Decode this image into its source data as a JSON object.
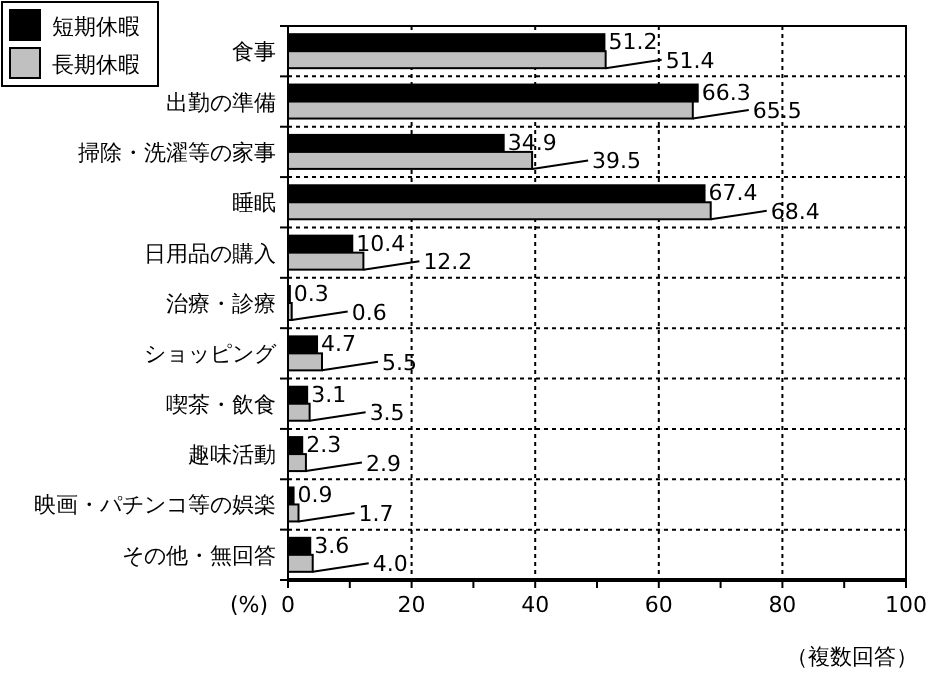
{
  "chart_data": {
    "type": "bar",
    "orientation": "horizontal",
    "categories": [
      "食事",
      "出勤の準備",
      "掃除・洗濯等の家事",
      "睡眠",
      "日用品の購入",
      "治療・診療",
      "ショッピング",
      "喫茶・飲食",
      "趣味活動",
      "映画・パチンコ等の娯楽",
      "その他・無回答"
    ],
    "series": [
      {
        "name": "短期休暇",
        "color": "#000000",
        "values": [
          51.2,
          66.3,
          34.9,
          67.4,
          10.4,
          0.3,
          4.7,
          3.1,
          2.3,
          0.9,
          3.6
        ],
        "value_labels": [
          "51.2",
          "66.3",
          "34.9",
          "67.4",
          "10.4",
          "0.3",
          "4.7",
          "3.1",
          "2.3",
          "0.9",
          "3.6"
        ]
      },
      {
        "name": "長期休暇",
        "color": "#c0c0c0",
        "values": [
          51.4,
          65.5,
          39.5,
          68.4,
          12.2,
          0.6,
          5.5,
          3.5,
          2.9,
          1.7,
          4.0
        ],
        "value_labels": [
          "51.4",
          "65.5",
          "39.5",
          "68.4",
          "12.2",
          "0.6",
          "5.5",
          "3.5",
          "2.9",
          "1.7",
          "4.0"
        ]
      }
    ],
    "xlim": [
      0,
      100
    ],
    "xticks": [
      0,
      {
        "value": 10,
        "label": null
      },
      20,
      {
        "value": 30,
        "label": null
      },
      40,
      {
        "value": 50,
        "label": null
      },
      60,
      {
        "value": 70,
        "label": null
      },
      80,
      {
        "value": 90,
        "label": null
      },
      100
    ],
    "xlabel": "(%)",
    "grid": true,
    "legend": "top left",
    "annotations": [
      "（複数回答）"
    ]
  }
}
